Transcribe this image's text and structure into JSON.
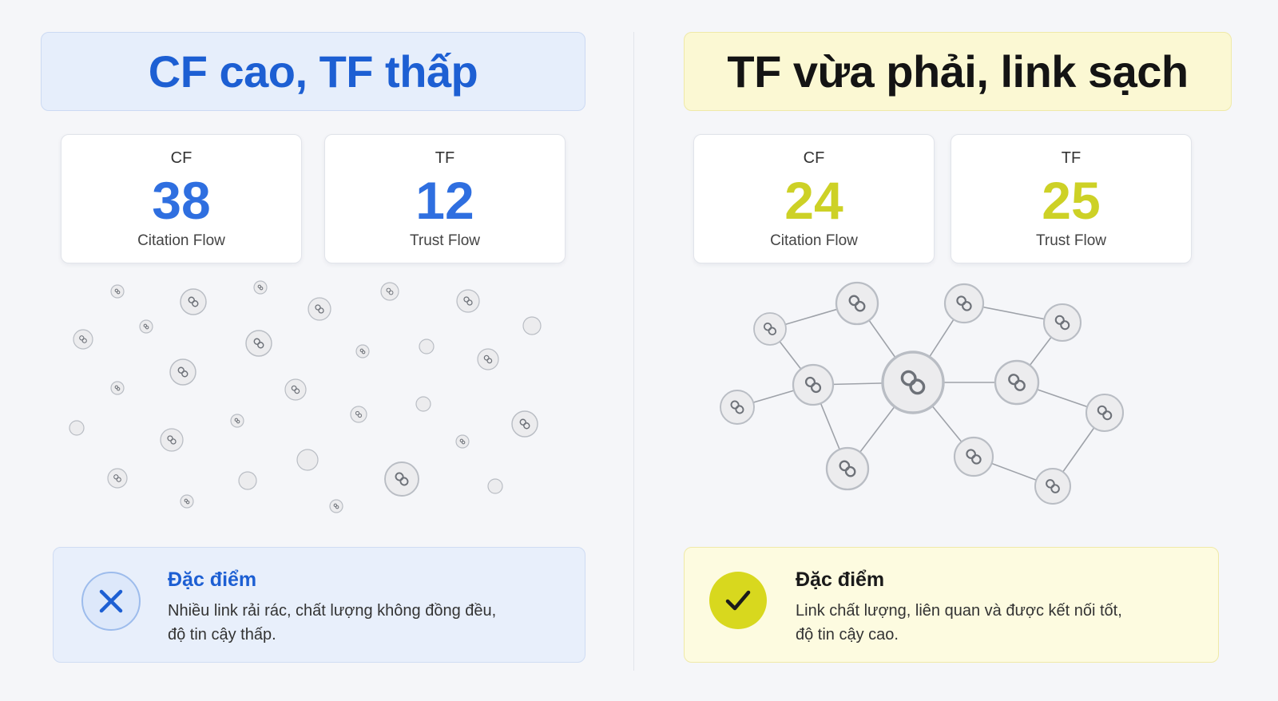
{
  "left": {
    "title": "CF cao, TF thấp",
    "cards": [
      {
        "label": "CF",
        "value": "38",
        "sub": "Citation Flow"
      },
      {
        "label": "TF",
        "value": "12",
        "sub": "Trust Flow"
      }
    ],
    "info": {
      "icon": "x-icon",
      "title": "Đặc điểm",
      "line1": "Nhiều link rải rác, chất lượng không đồng đều,",
      "line2": "độ tin cậy thấp."
    }
  },
  "right": {
    "title": "TF vừa phải, link sạch",
    "cards": [
      {
        "label": "CF",
        "value": "24",
        "sub": "Citation Flow"
      },
      {
        "label": "TF",
        "value": "25",
        "sub": "Trust Flow"
      }
    ],
    "info": {
      "icon": "check-icon",
      "title": "Đặc điểm",
      "line1": "Link chất lượng, liên quan và được kết nối tốt,",
      "line2": "độ tin cậy cao."
    }
  },
  "colors": {
    "left_accent": "#1d5fd3",
    "right_accent": "#d8d81e",
    "node_stroke": "#b9bdc4"
  },
  "icons": {
    "scattered_nodes": "link-icon",
    "network_nodes": "link-icon"
  }
}
